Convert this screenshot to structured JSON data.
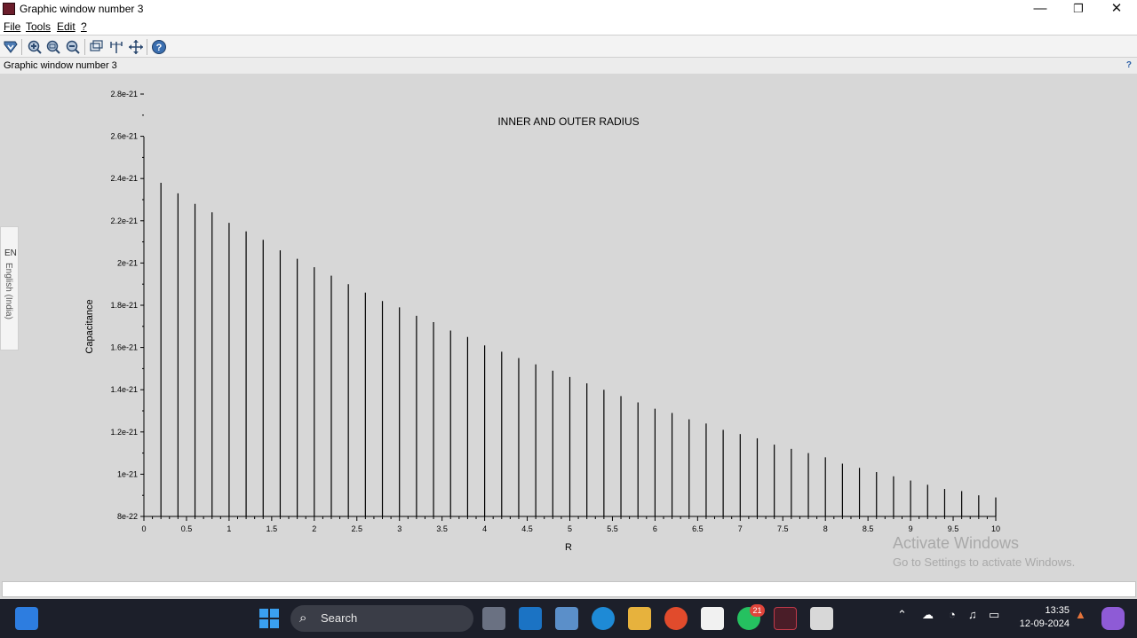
{
  "window": {
    "title": "Graphic window number 3",
    "minimize_glyph": "—",
    "maximize_glyph": "❐",
    "close_glyph": "✕"
  },
  "menu": {
    "items": [
      "File",
      "Tools",
      "Edit",
      "?"
    ]
  },
  "toolbar": {
    "icons": [
      "datatip-icon",
      "zoom-in-icon",
      "zoom-fit-icon",
      "zoom-out-icon",
      "rotate-icon",
      "select-icon",
      "pan-icon",
      "help-icon"
    ]
  },
  "subheader": {
    "label": "Graphic window number 3",
    "help": "?"
  },
  "language_tab": {
    "code": "EN",
    "name": "English (India)"
  },
  "chart_data": {
    "type": "bar",
    "title": "INNER AND OUTER RADIUS",
    "xlabel": "R",
    "ylabel": "Capacitance",
    "xlim": [
      0,
      10
    ],
    "ylim": [
      8e-22,
      2.8e-21
    ],
    "x_ticks": [
      "0",
      "0.5",
      "1",
      "1.5",
      "2",
      "2.5",
      "3",
      "3.5",
      "4",
      "4.5",
      "5",
      "5.5",
      "6",
      "6.5",
      "7",
      "7.5",
      "8",
      "8.5",
      "9",
      "9.5",
      "10"
    ],
    "y_ticks": [
      "8e-22",
      "1e-21",
      "1.2e-21",
      "1.4e-21",
      "1.6e-21",
      "1.8e-21",
      "2e-21",
      "2.2e-21",
      "2.4e-21",
      "2.6e-21",
      "2.8e-21"
    ],
    "x": [
      0.2,
      0.4,
      0.6,
      0.8,
      1.0,
      1.2,
      1.4,
      1.6,
      1.8,
      2.0,
      2.2,
      2.4,
      2.6,
      2.8,
      3.0,
      3.2,
      3.4,
      3.6,
      3.8,
      4.0,
      4.2,
      4.4,
      4.6,
      4.8,
      5.0,
      5.2,
      5.4,
      5.6,
      5.8,
      6.0,
      6.2,
      6.4,
      6.6,
      6.8,
      7.0,
      7.2,
      7.4,
      7.6,
      7.8,
      8.0,
      8.2,
      8.4,
      8.6,
      8.8,
      9.0,
      9.2,
      9.4,
      9.6,
      9.8,
      10.0
    ],
    "values": [
      2.38e-21,
      2.33e-21,
      2.28e-21,
      2.24e-21,
      2.19e-21,
      2.15e-21,
      2.11e-21,
      2.06e-21,
      2.02e-21,
      1.98e-21,
      1.94e-21,
      1.9e-21,
      1.86e-21,
      1.82e-21,
      1.79e-21,
      1.75e-21,
      1.72e-21,
      1.68e-21,
      1.65e-21,
      1.61e-21,
      1.58e-21,
      1.55e-21,
      1.52e-21,
      1.49e-21,
      1.46e-21,
      1.43e-21,
      1.4e-21,
      1.37e-21,
      1.34e-21,
      1.31e-21,
      1.29e-21,
      1.26e-21,
      1.24e-21,
      1.21e-21,
      1.19e-21,
      1.17e-21,
      1.14e-21,
      1.12e-21,
      1.1e-21,
      1.08e-21,
      1.05e-21,
      1.03e-21,
      1.01e-21,
      9.9e-22,
      9.7e-22,
      9.5e-22,
      9.3e-22,
      9.2e-22,
      9e-22,
      8.9e-22
    ],
    "grid": false
  },
  "watermark": {
    "line1": "Activate Windows",
    "line2": "Go to Settings to activate Windows."
  },
  "taskbar": {
    "search_label": "Search",
    "whatsapp_badge": "21",
    "time": "13:35",
    "date": "12-09-2024"
  },
  "colors": {
    "plot_bg": "#d7d7d7",
    "bars": "#000000",
    "taskbar_bg": "#1c1f2a"
  }
}
